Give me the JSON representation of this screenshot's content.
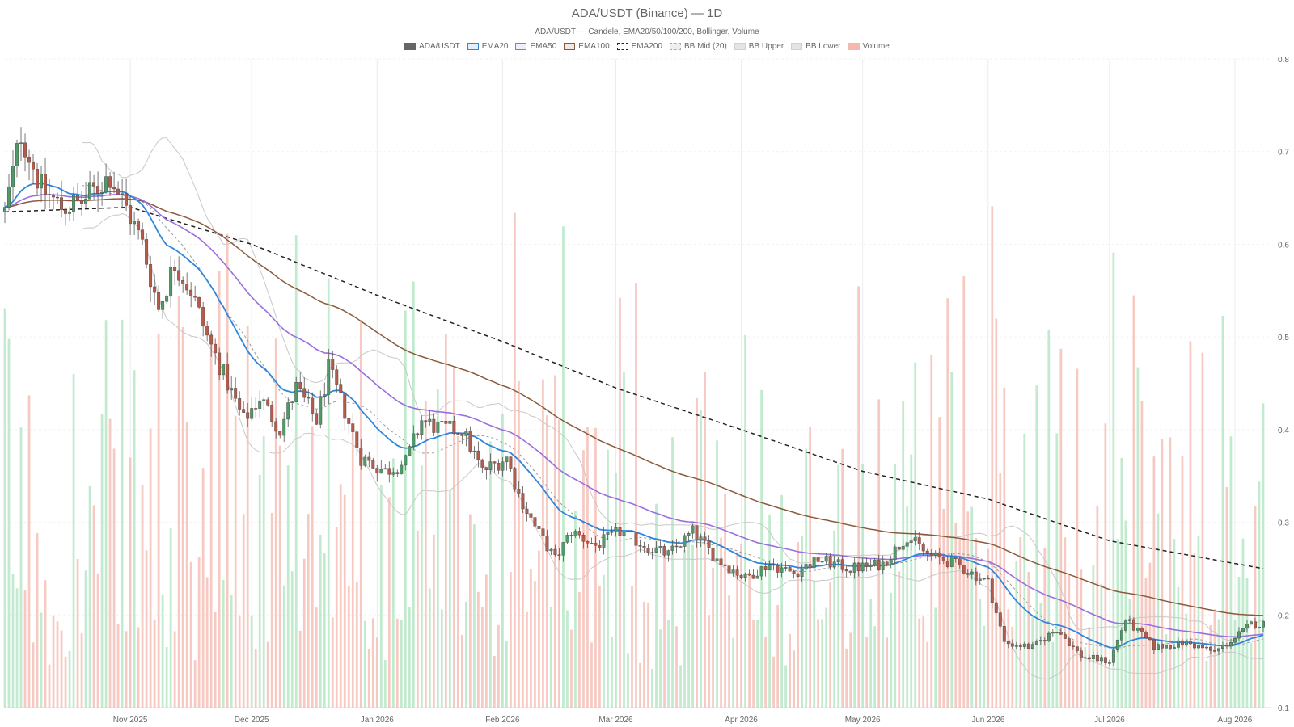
{
  "chart_data": {
    "type": "candlestick",
    "title": "ADA/USDT (Binance) — 1D",
    "subtitle": "ADA/USDT — Candele, EMA20/50/100/200, Bollinger, Volume",
    "ylim": [
      0.1,
      0.8
    ],
    "yticks": [
      "0.1",
      "0.2",
      "0.3",
      "0.4",
      "0.5",
      "0.6",
      "0.7",
      "0.8"
    ],
    "xlim": [
      "2025-10-01",
      "2026-08-10"
    ],
    "x_ticks": [
      {
        "date": "2025-11-01",
        "label": "Nov 2025"
      },
      {
        "date": "2025-12-01",
        "label": "Dec 2025"
      },
      {
        "date": "2026-01-01",
        "label": "Jan 2026"
      },
      {
        "date": "2026-02-01",
        "label": "Feb 2026"
      },
      {
        "date": "2026-03-01",
        "label": "Mar 2026"
      },
      {
        "date": "2026-04-01",
        "label": "Apr 2026"
      },
      {
        "date": "2026-05-01",
        "label": "May 2026"
      },
      {
        "date": "2026-06-01",
        "label": "Jun 2026"
      },
      {
        "date": "2026-07-01",
        "label": "Jul 2026"
      },
      {
        "date": "2026-08-01",
        "label": "Aug 2026"
      }
    ],
    "legend": [
      {
        "name": "ADA/USDT",
        "color": "#666666",
        "style": "solid-fill"
      },
      {
        "name": "EMA20",
        "color": "#2e86de",
        "style": "line"
      },
      {
        "name": "EMA50",
        "color": "#9b6ee0",
        "style": "line"
      },
      {
        "name": "EMA100",
        "color": "#8b5a3c",
        "style": "line"
      },
      {
        "name": "EMA200",
        "color": "#222222",
        "style": "dashed"
      },
      {
        "name": "BB Mid (20)",
        "color": "#aaaaaa",
        "style": "dotted"
      },
      {
        "name": "BB Upper",
        "color": "#cccccc",
        "style": "line"
      },
      {
        "name": "BB Lower",
        "color": "#cccccc",
        "style": "line"
      },
      {
        "name": "Volume",
        "color": "#f4b8ae",
        "style": "fill"
      }
    ],
    "colors": {
      "up": "#4e9a68",
      "down": "#b85a4a",
      "wick": "#555555",
      "vol_up": "#b6e6c6",
      "vol_down": "#f4c1b8",
      "grid": "#ececec"
    },
    "close_anchors": [
      [
        "2025-10-01",
        0.635
      ],
      [
        "2025-10-05",
        0.72
      ],
      [
        "2025-10-10",
        0.66
      ],
      [
        "2025-10-15",
        0.64
      ],
      [
        "2025-10-20",
        0.645
      ],
      [
        "2025-10-27",
        0.675
      ],
      [
        "2025-11-01",
        0.63
      ],
      [
        "2025-11-04",
        0.6
      ],
      [
        "2025-11-08",
        0.53
      ],
      [
        "2025-11-12",
        0.58
      ],
      [
        "2025-11-16",
        0.55
      ],
      [
        "2025-11-20",
        0.5
      ],
      [
        "2025-11-25",
        0.45
      ],
      [
        "2025-11-29",
        0.41
      ],
      [
        "2025-12-03",
        0.435
      ],
      [
        "2025-12-08",
        0.4
      ],
      [
        "2025-12-12",
        0.445
      ],
      [
        "2025-12-17",
        0.41
      ],
      [
        "2025-12-20",
        0.465
      ],
      [
        "2025-12-24",
        0.42
      ],
      [
        "2025-12-28",
        0.37
      ],
      [
        "2026-01-03",
        0.355
      ],
      [
        "2026-01-08",
        0.365
      ],
      [
        "2026-01-12",
        0.41
      ],
      [
        "2026-01-17",
        0.4
      ],
      [
        "2026-01-22",
        0.4
      ],
      [
        "2026-01-27",
        0.355
      ],
      [
        "2026-02-02",
        0.37
      ],
      [
        "2026-02-05",
        0.33
      ],
      [
        "2026-02-09",
        0.295
      ],
      [
        "2026-02-14",
        0.26
      ],
      [
        "2026-02-18",
        0.29
      ],
      [
        "2026-02-24",
        0.275
      ],
      [
        "2026-03-02",
        0.29
      ],
      [
        "2026-03-08",
        0.275
      ],
      [
        "2026-03-14",
        0.265
      ],
      [
        "2026-03-20",
        0.29
      ],
      [
        "2026-03-26",
        0.26
      ],
      [
        "2026-04-02",
        0.24
      ],
      [
        "2026-04-08",
        0.255
      ],
      [
        "2026-04-14",
        0.245
      ],
      [
        "2026-04-20",
        0.26
      ],
      [
        "2026-04-28",
        0.25
      ],
      [
        "2026-05-06",
        0.255
      ],
      [
        "2026-05-12",
        0.285
      ],
      [
        "2026-05-17",
        0.265
      ],
      [
        "2026-05-24",
        0.255
      ],
      [
        "2026-06-01",
        0.235
      ],
      [
        "2026-06-05",
        0.17
      ],
      [
        "2026-06-12",
        0.165
      ],
      [
        "2026-06-18",
        0.185
      ],
      [
        "2026-06-24",
        0.155
      ],
      [
        "2026-07-01",
        0.15
      ],
      [
        "2026-07-05",
        0.195
      ],
      [
        "2026-07-12",
        0.165
      ],
      [
        "2026-07-20",
        0.17
      ],
      [
        "2026-07-27",
        0.16
      ],
      [
        "2026-08-01",
        0.175
      ],
      [
        "2026-08-05",
        0.19
      ],
      [
        "2026-08-08",
        0.19
      ]
    ],
    "ema200_anchors": [
      [
        "2025-10-01",
        0.635
      ],
      [
        "2025-11-01",
        0.64
      ],
      [
        "2025-12-01",
        0.6
      ],
      [
        "2026-01-01",
        0.545
      ],
      [
        "2026-02-01",
        0.495
      ],
      [
        "2026-03-01",
        0.445
      ],
      [
        "2026-04-01",
        0.4
      ],
      [
        "2026-05-01",
        0.355
      ],
      [
        "2026-06-01",
        0.325
      ],
      [
        "2026-07-01",
        0.28
      ],
      [
        "2026-08-08",
        0.25
      ]
    ],
    "volume_ylim": [
      0,
      1
    ],
    "volume_note_max_relative": 0.86
  }
}
